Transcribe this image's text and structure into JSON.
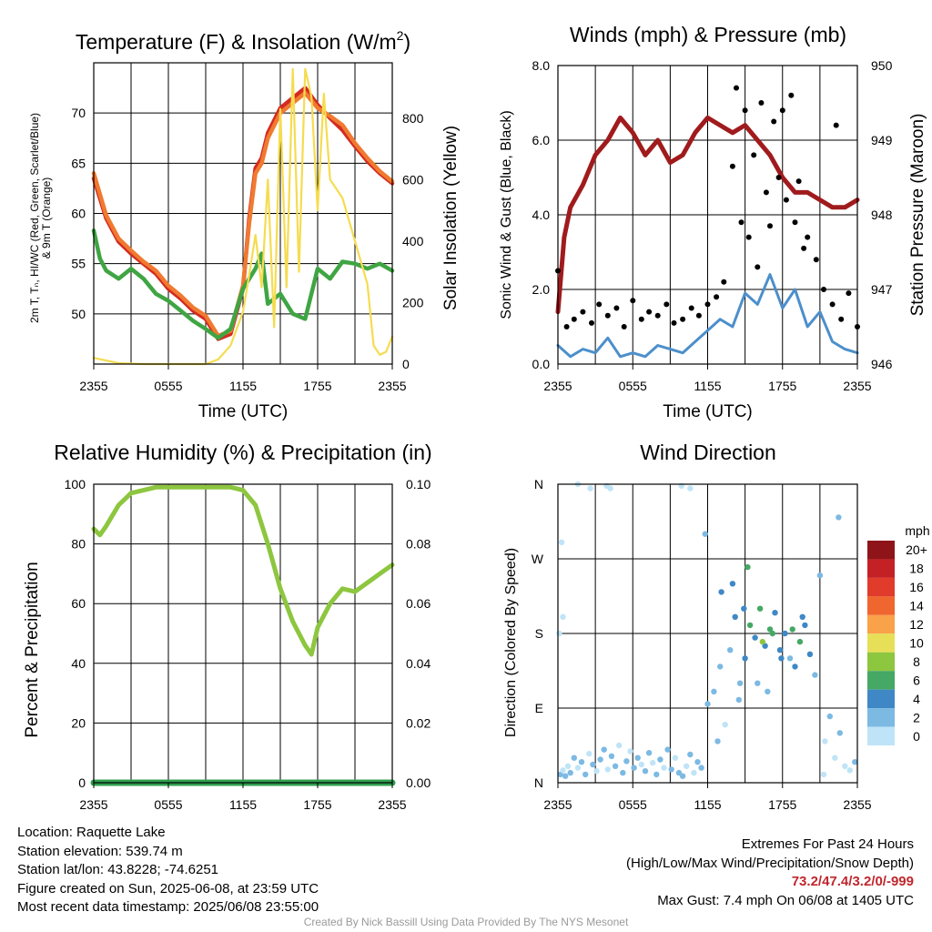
{
  "chart_data": [
    {
      "type": "line",
      "title": "Temperature (F) & Insolation (W/m",
      "title_sup": "2",
      "title_end": ")",
      "xlabel": "Time (UTC)",
      "ylabel_left_lines": [
        "2m T, Tₙ, HI/WC (Red, Green, Scarlet/Blue)",
        "& 9m T (Orange)"
      ],
      "ylabel_right": "Solar Insolation (Yellow)",
      "xticks": [
        "2355",
        "0555",
        "1155",
        "1755",
        "2355"
      ],
      "ylim": [
        45,
        75
      ],
      "yticks": [
        50,
        55,
        60,
        65,
        70
      ],
      "ylim_right": [
        0,
        980
      ],
      "yticks_right": [
        0,
        200,
        400,
        600,
        800
      ],
      "x_hours": [
        0,
        24
      ],
      "grid": true,
      "series": [
        {
          "name": "2m T",
          "axis": "left",
          "color": "#d42a20",
          "x": [
            0,
            1,
            2,
            3,
            4,
            5,
            6,
            7,
            8,
            9,
            10,
            11,
            12,
            12.5,
            13,
            13.5,
            14,
            15,
            16,
            17,
            18,
            19,
            20,
            21,
            22,
            23,
            24
          ],
          "y": [
            63.5,
            59.5,
            57.2,
            56.0,
            55.0,
            54.0,
            52.5,
            51.5,
            50.3,
            49.5,
            47.5,
            48.0,
            52.5,
            59.5,
            64.5,
            65.5,
            68.0,
            70.5,
            71.5,
            72.5,
            70.8,
            69.5,
            68.3,
            66.7,
            65.2,
            64.0,
            63.0
          ]
        },
        {
          "name": "9m T",
          "axis": "left",
          "color": "#f07a30",
          "x": [
            0,
            1,
            2,
            3,
            4,
            5,
            6,
            7,
            8,
            9,
            10,
            11,
            12,
            12.5,
            13,
            13.5,
            14,
            15,
            16,
            17,
            18,
            19,
            20,
            21,
            22,
            23,
            24
          ],
          "y": [
            64.0,
            59.8,
            57.5,
            56.3,
            55.2,
            54.3,
            52.8,
            51.8,
            50.6,
            49.8,
            47.8,
            48.3,
            52.8,
            59.0,
            64.0,
            65.0,
            67.5,
            70.0,
            71.0,
            72.0,
            70.5,
            69.7,
            68.8,
            67.0,
            65.5,
            64.2,
            63.2
          ]
        },
        {
          "name": "Td",
          "axis": "left",
          "color": "#3fa543",
          "x": [
            0,
            0.5,
            1,
            2,
            3,
            4,
            5,
            6,
            7,
            8,
            9,
            10,
            11,
            12,
            13,
            13.5,
            14,
            15,
            16,
            17,
            18,
            19,
            20,
            21,
            22,
            23,
            24
          ],
          "y": [
            58.3,
            55.5,
            54.3,
            53.5,
            54.5,
            53.5,
            52.0,
            51.3,
            50.3,
            49.3,
            48.5,
            47.6,
            48.5,
            52.5,
            54.5,
            56.0,
            51.0,
            52.0,
            50.0,
            49.5,
            54.5,
            53.5,
            55.2,
            55.0,
            54.5,
            55.0,
            54.3
          ]
        },
        {
          "name": "Solar Insolation",
          "axis": "right",
          "color": "#f5dc50",
          "x": [
            0,
            2,
            4,
            6,
            8,
            9,
            10,
            11,
            12,
            12.5,
            13,
            13.5,
            14,
            14.5,
            15,
            15.5,
            16,
            16.5,
            17,
            17.5,
            18,
            18.5,
            19,
            20,
            21,
            22,
            22.5,
            23,
            23.5,
            24
          ],
          "y": [
            20,
            3,
            0,
            0,
            0,
            0,
            15,
            60,
            170,
            290,
            420,
            250,
            600,
            120,
            830,
            250,
            960,
            300,
            960,
            870,
            500,
            880,
            600,
            540,
            400,
            260,
            60,
            30,
            40,
            90
          ]
        }
      ]
    },
    {
      "type": "line",
      "title": "Winds (mph) & Pressure (mb)",
      "xlabel": "Time (UTC)",
      "ylabel": "Sonic Wind & Gust (Blue, Black)",
      "ylabel_right": "Station Pressure (Maroon)",
      "xticks": [
        "2355",
        "0555",
        "1155",
        "1755",
        "2355"
      ],
      "ylim": [
        0,
        8
      ],
      "yticks": [
        "0.0",
        "2.0",
        "4.0",
        "6.0",
        "8.0"
      ],
      "ylim_right": [
        946,
        950
      ],
      "yticks_right": [
        946,
        947,
        948,
        949,
        950
      ],
      "x_hours": [
        0,
        24
      ],
      "grid": true,
      "series": [
        {
          "name": "Station Pressure",
          "axis": "right",
          "color": "#a01b1d",
          "x": [
            0,
            0.5,
            1,
            2,
            3,
            4,
            5,
            6,
            7,
            8,
            9,
            10,
            11,
            12,
            13,
            14,
            15,
            16,
            17,
            18,
            19,
            20,
            21,
            22,
            23,
            24
          ],
          "y": [
            946.7,
            947.7,
            948.1,
            948.4,
            948.8,
            949.0,
            949.3,
            949.1,
            948.8,
            949.0,
            948.7,
            948.8,
            949.1,
            949.3,
            949.2,
            949.1,
            949.2,
            949.0,
            948.8,
            948.5,
            948.3,
            948.3,
            948.2,
            948.1,
            948.1,
            948.2
          ]
        },
        {
          "name": "Sonic Wind",
          "axis": "left",
          "color": "#4c8fcb",
          "x": [
            0,
            1,
            2,
            3,
            4,
            5,
            6,
            7,
            8,
            9,
            10,
            11,
            12,
            13,
            14,
            15,
            16,
            17,
            18,
            19,
            20,
            21,
            22,
            23,
            24
          ],
          "y": [
            0.5,
            0.2,
            0.4,
            0.3,
            0.7,
            0.2,
            0.3,
            0.2,
            0.5,
            0.4,
            0.3,
            0.6,
            0.9,
            1.2,
            1.0,
            1.9,
            1.6,
            2.4,
            1.5,
            2.0,
            1.0,
            1.4,
            0.6,
            0.4,
            0.3
          ]
        },
        {
          "name": "Gust",
          "axis": "left",
          "color": "#000000",
          "marker": "dot",
          "x": [
            0,
            0.7,
            1.3,
            2.0,
            2.7,
            3.3,
            4.0,
            4.7,
            5.3,
            6.0,
            6.7,
            7.3,
            8.0,
            8.7,
            9.3,
            10.0,
            10.7,
            11.3,
            12.0,
            12.7,
            13.3,
            14.0,
            14.3,
            14.7,
            15.0,
            15.3,
            15.7,
            16.0,
            16.3,
            16.7,
            17.0,
            17.3,
            17.7,
            18.0,
            18.3,
            18.7,
            19.0,
            19.3,
            19.7,
            20.0,
            20.7,
            21.3,
            22.0,
            22.3,
            22.7,
            23.3,
            24.0
          ],
          "y": [
            2.5,
            1.0,
            1.2,
            1.4,
            1.1,
            1.6,
            1.3,
            1.5,
            1.0,
            1.7,
            1.2,
            1.4,
            1.3,
            1.6,
            1.1,
            1.2,
            1.5,
            1.3,
            1.6,
            1.8,
            2.2,
            5.3,
            7.4,
            3.8,
            6.8,
            3.4,
            5.6,
            2.6,
            7.0,
            4.6,
            3.7,
            6.5,
            5.0,
            6.8,
            4.4,
            7.2,
            3.8,
            4.9,
            3.1,
            3.4,
            2.8,
            2.0,
            1.6,
            6.4,
            1.2,
            1.9,
            1.0
          ]
        }
      ]
    },
    {
      "type": "line",
      "title": "Relative Humidity (%) & Precipitation (in)",
      "xlabel": "",
      "ylabel": "Percent & Precipitation",
      "xticks": [
        "2355",
        "0555",
        "1155",
        "1755",
        "2355"
      ],
      "ylim": [
        0,
        100
      ],
      "yticks": [
        0,
        20,
        40,
        60,
        80,
        100
      ],
      "ylim_right": [
        0,
        0.1
      ],
      "yticks_right": [
        "0.00",
        "0.02",
        "0.04",
        "0.06",
        "0.08",
        "0.10"
      ],
      "x_hours": [
        0,
        24
      ],
      "grid": true,
      "series": [
        {
          "name": "Relative Humidity",
          "axis": "left",
          "color": "#8dc63f",
          "x": [
            0,
            0.5,
            1,
            2,
            3,
            4,
            5,
            6,
            7,
            8,
            9,
            10,
            11,
            12,
            13,
            14,
            15,
            16,
            17,
            17.5,
            18,
            19,
            20,
            21,
            22,
            23,
            24
          ],
          "y": [
            85,
            83,
            86,
            93,
            97,
            98,
            99,
            99,
            99,
            99,
            99,
            99,
            99,
            98,
            93,
            80,
            65,
            54,
            46,
            43,
            52,
            60,
            65,
            64,
            67,
            70,
            73
          ]
        },
        {
          "name": "Precipitation",
          "axis": "right",
          "color": "#2f9e4e",
          "x": [
            0,
            24
          ],
          "y": [
            0,
            0
          ]
        }
      ]
    },
    {
      "type": "scatter",
      "title": "Wind Direction",
      "ylabel": "Direction (Colored By Speed)",
      "xticks": [
        "2355",
        "0555",
        "1155",
        "1755",
        "2355"
      ],
      "ylim": [
        0,
        360
      ],
      "yticks": [
        0,
        90,
        180,
        270,
        360
      ],
      "ytick_labels": [
        "N",
        "E",
        "S",
        "W",
        "N"
      ],
      "x_hours": [
        0,
        24
      ],
      "grid": true,
      "colorbar_unit": "mph",
      "colorbar_labels": [
        "20+",
        "18",
        "16",
        "14",
        "12",
        "10",
        "8",
        "6",
        "4",
        "2",
        "0"
      ],
      "colorbar_colors": [
        "#8e1419",
        "#c42126",
        "#e03b2b",
        "#f0662f",
        "#f9a24a",
        "#e7df57",
        "#8dc63f",
        "#45a864",
        "#3f88c5",
        "#7cb9e3",
        "#bfe4f7"
      ],
      "series": [
        {
          "name": "Wind Direction",
          "x": [
            0.2,
            0.4,
            0.6,
            0.8,
            1.0,
            1.3,
            1.6,
            1.9,
            2.2,
            2.5,
            2.8,
            3.1,
            3.4,
            3.7,
            4.0,
            4.3,
            4.6,
            4.9,
            5.2,
            5.5,
            5.8,
            6.1,
            6.4,
            6.7,
            7.0,
            7.3,
            7.6,
            7.9,
            8.2,
            8.5,
            8.8,
            9.1,
            9.4,
            9.7,
            10.0,
            10.3,
            10.6,
            10.9,
            11.2,
            11.5,
            0.3,
            1.6,
            2.6,
            3.9,
            4.2,
            9.9,
            10.6,
            12.0,
            12.5,
            13.0,
            13.4,
            13.8,
            14.2,
            14.6,
            15.0,
            15.4,
            15.8,
            16.2,
            16.6,
            17.0,
            17.4,
            17.8,
            18.2,
            18.6,
            19.0,
            19.4,
            19.8,
            20.2,
            20.6,
            21.0,
            21.4,
            21.8,
            22.2,
            22.6,
            23.0,
            23.4,
            23.8,
            13.1,
            14.5,
            15.2,
            16.4,
            17.2,
            17.9,
            18.8,
            19.6,
            12.8,
            14.0,
            16.8,
            21.3,
            22.5,
            0.1,
            0.4,
            11.8,
            14.9,
            16.0
          ],
          "y": [
            10,
            15,
            8,
            20,
            12,
            30,
            18,
            25,
            10,
            35,
            22,
            14,
            28,
            40,
            16,
            32,
            20,
            45,
            12,
            26,
            38,
            18,
            30,
            22,
            14,
            36,
            24,
            10,
            28,
            18,
            40,
            16,
            30,
            12,
            8,
            20,
            34,
            12,
            25,
            18,
            290,
            360,
            355,
            358,
            355,
            358,
            355,
            95,
            110,
            140,
            70,
            160,
            200,
            120,
            150,
            190,
            175,
            210,
            165,
            185,
            205,
            160,
            180,
            150,
            140,
            170,
            190,
            155,
            130,
            250,
            50,
            80,
            30,
            60,
            20,
            15,
            25,
            230,
            100,
            260,
            170,
            180,
            150,
            185,
            200,
            50,
            240,
            110,
            10,
            320,
            180,
            200,
            300,
            210,
            120
          ],
          "speed": [
            1,
            0,
            1,
            0,
            1,
            1,
            0,
            1,
            1,
            0,
            1,
            0,
            1,
            1,
            0,
            1,
            1,
            0,
            1,
            1,
            0,
            1,
            1,
            0,
            1,
            1,
            0,
            1,
            1,
            0,
            1,
            1,
            0,
            1,
            1,
            0,
            1,
            0,
            1,
            1,
            0,
            0,
            0,
            0,
            0,
            0,
            0,
            1,
            1,
            1,
            0,
            1,
            2,
            1,
            2,
            3,
            2,
            3,
            2,
            3,
            2,
            2,
            2,
            1,
            2,
            3,
            2,
            2,
            1,
            1,
            0,
            1,
            0,
            1,
            0,
            0,
            1,
            2,
            1,
            3,
            4,
            3,
            2,
            3,
            2,
            1,
            2,
            1,
            0,
            1,
            0,
            0,
            1,
            2,
            1
          ]
        }
      ]
    }
  ],
  "station_info": {
    "location": "Location: Raquette Lake",
    "elevation": "Station elevation: 539.74 m",
    "latlon": "Station lat/lon: 43.8228; -74.6251",
    "created": "Figure created on Sun, 2025-06-08, at 23:59 UTC",
    "recent": "Most recent data timestamp: 2025/06/08 23:55:00"
  },
  "extremes": {
    "heading": "Extremes For Past 24 Hours",
    "legend": "(High/Low/Max Wind/Precipitation/Snow Depth)",
    "values": "73.2/47.4/3.2/0/-999",
    "max_gust": "Max Gust: 7.4 mph On 06/08 at 1405 UTC"
  },
  "credit": "Created By Nick Bassill Using Data Provided By The NYS Mesonet"
}
